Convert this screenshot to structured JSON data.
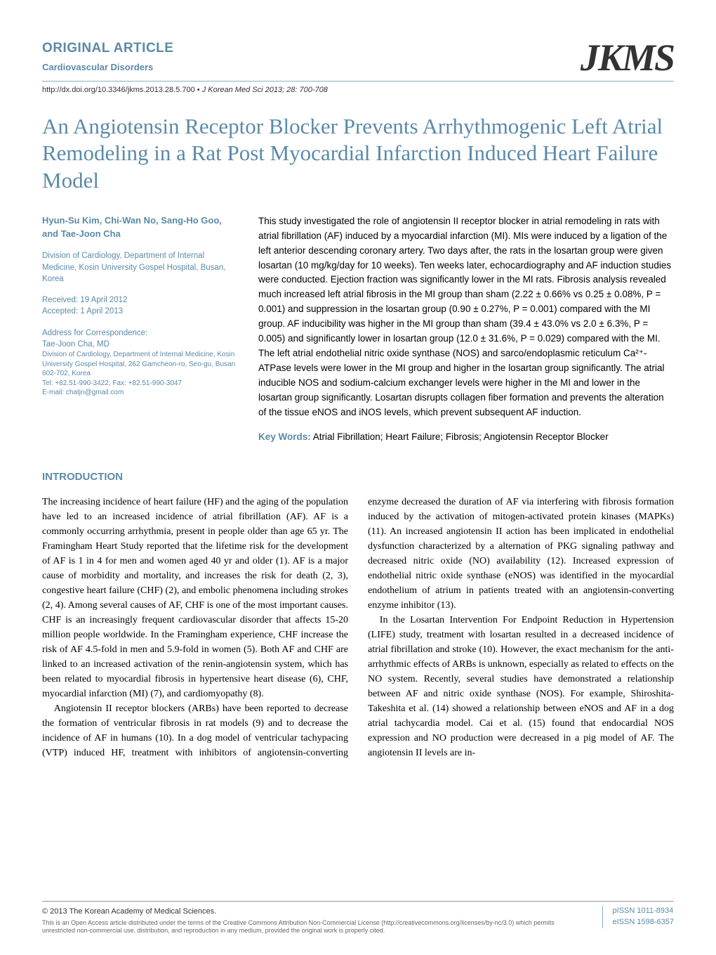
{
  "header": {
    "article_type": "ORIGINAL ARTICLE",
    "section_subtitle": "Cardiovascular Disorders",
    "logo_text": "JKMS",
    "doi": "http://dx.doi.org/10.3346/jkms.2013.28.5.700",
    "bullet": "•",
    "journal_ref": "J Korean Med Sci 2013; 28: 700-708"
  },
  "title": "An Angiotensin Receptor Blocker Prevents Arrhythmogenic Left Atrial Remodeling in a Rat Post Myocardial Infarction Induced Heart Failure Model",
  "authors": "Hyun-Su Kim, Chi-Wan No, Sang-Ho Goo, and Tae-Joon Cha",
  "affiliation": "Division of Cardiology, Department of Internal Medicine, Kosin University Gospel Hospital, Busan, Korea",
  "dates": {
    "received": "Received: 19 April 2012",
    "accepted": "Accepted: 1 April 2013"
  },
  "correspondence": {
    "label": "Address for Correspondence:",
    "name": "Tae-Joon Cha, MD",
    "details": "Division of Cardiology, Department of Internal Medicine, Kosin University Gospel Hospital, 262 Gamcheon-ro, Seo-gu, Busan 602-702, Korea\nTel: +82.51-990-3422, Fax: +82.51-990-3047\nE-mail: chatjn@gmail.com"
  },
  "abstract": "This study investigated the role of angiotensin II receptor blocker in atrial remodeling in rats with atrial fibrillation (AF) induced by a myocardial infarction (MI). MIs were induced by a ligation of the left anterior descending coronary artery. Two days after, the rats in the losartan group were given losartan (10 mg/kg/day for 10 weeks). Ten weeks later, echocardiography and AF induction studies were conducted. Ejection fraction was significantly lower in the MI rats. Fibrosis analysis revealed much increased left atrial fibrosis in the MI group than sham (2.22 ± 0.66% vs 0.25 ± 0.08%, P = 0.001) and suppression in the losartan group (0.90 ± 0.27%, P = 0.001) compared with the MI group. AF inducibility was higher in the MI group than sham (39.4 ± 43.0% vs 2.0 ± 6.3%, P = 0.005) and significantly lower in losartan group (12.0 ± 31.6%, P = 0.029) compared with the MI. The left atrial endothelial nitric oxide synthase (NOS) and sarco/endoplasmic reticulum Ca²⁺-ATPase levels were lower in the MI group and higher in the losartan group significantly. The atrial inducible NOS and sodium-calcium exchanger levels were higher in the MI and lower in the losartan group significantly. Losartan disrupts collagen fiber formation and prevents the alteration of the tissue eNOS and iNOS levels, which prevent subsequent AF induction.",
  "keywords": {
    "label": "Key Words:",
    "text": " Atrial Fibrillation; Heart Failure; Fibrosis; Angiotensin Receptor Blocker"
  },
  "introduction": {
    "heading": "INTRODUCTION",
    "p1": "The increasing incidence of heart failure (HF) and the aging of the population have led to an increased incidence of atrial fibrillation (AF). AF is a commonly occurring arrhythmia, present in people older than age 65 yr. The Framingham Heart Study reported that the lifetime risk for the development of AF is 1 in 4 for men and women aged 40 yr and older (1). AF is a major cause of morbidity and mortality, and increases the risk for death (2, 3), congestive heart failure (CHF) (2), and embolic phenomena including strokes (2, 4). Among several causes of AF, CHF is one of the most important causes. CHF is an increasingly frequent cardiovascular disorder that affects 15-20 million people worldwide. In the Framingham experience, CHF increase the risk of AF 4.5-fold in men and 5.9-fold in women (5). Both AF and CHF are linked to an increased activation of the renin-angiotensin system, which has been related to myocardial fibrosis in hypertensive heart disease (6), CHF, myocardial infarction (MI) (7), and cardiomyopathy (8).",
    "p2": "Angiotensin II receptor blockers (ARBs) have been reported to decrease the formation of ventricular fibrosis in rat models (9) and to decrease the incidence of AF in humans (10). In a dog model of ventricular tachypacing (VTP) induced HF, treatment with inhibitors of angiotensin-converting enzyme decreased the duration of AF via interfering with fibrosis formation induced by the activation of mitogen-activated protein kinases (MAPKs) (11). An increased angiotensin II action has been implicated in endothelial dysfunction characterized by a alternation of PKG signaling pathway and decreased nitric oxide (NO) availability (12). Increased expression of endothelial nitric oxide synthase (eNOS) was identified in the myocardial endothelium of atrium in patients treated with an angiotensin-converting enzyme inhibitor (13).",
    "p3": "In the Losartan Intervention For Endpoint Reduction in Hypertension (LIFE) study, treatment with losartan resulted in a decreased incidence of atrial fibrillation and stroke (10). However, the exact mechanism for the anti-arrhythmic effects of ARBs is unknown, especially as related to effects on the NO system. Recently, several studies have demonstrated a relationship between AF and nitric oxide synthase (NOS). For example, Shiroshita-Takeshita et al. (14) showed a relationship between eNOS and AF in a dog atrial tachycardia model. Cai et al. (15) found that endocardial NOS expression and NO production were decreased in a pig model of AF. The angiotensin II levels are in-"
  },
  "footer": {
    "copyright": "© 2013 The Korean Academy of Medical Sciences.",
    "license": "This is an Open Access article distributed under the terms of the Creative Commons Attribution Non-Commercial License (http://creativecommons.org/licenses/by-nc/3.0) which permits unrestricted non-commercial use, distribution, and reproduction in any medium, provided the original work is properly cited.",
    "pissn": "pISSN 1011-8934",
    "eissn": "eISSN 1598-6357"
  },
  "colors": {
    "accent": "#5a8aa8",
    "text": "#000000",
    "rule": "#8aaec4",
    "footer_text": "#666666"
  }
}
